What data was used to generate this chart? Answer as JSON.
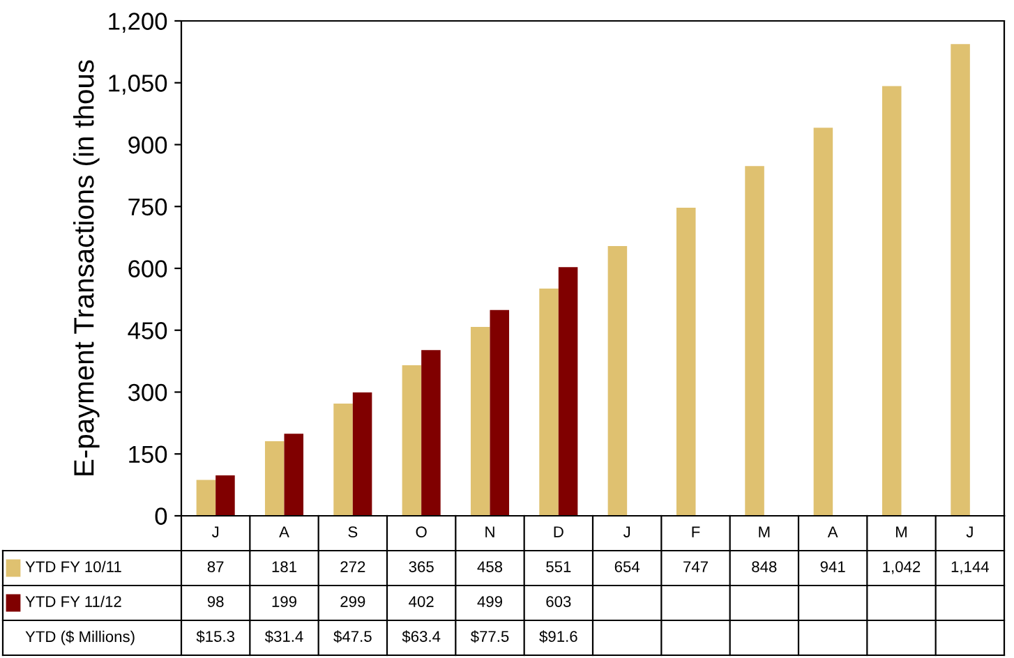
{
  "chart_data": {
    "type": "bar",
    "ylabel": "E-payment Transactions (in thous",
    "categories": [
      "J",
      "A",
      "S",
      "O",
      "N",
      "D",
      "J",
      "F",
      "M",
      "A",
      "M",
      "J"
    ],
    "series": [
      {
        "name": "YTD FY 10/11",
        "color": "#dfc170",
        "values": [
          87,
          181,
          272,
          365,
          458,
          551,
          654,
          747,
          848,
          941,
          1042,
          1144
        ],
        "value_labels": [
          "87",
          "181",
          "272",
          "365",
          "458",
          "551",
          "654",
          "747",
          "848",
          "941",
          "1,042",
          "1,144"
        ]
      },
      {
        "name": "YTD FY 11/12",
        "color": "#800000",
        "values": [
          98,
          199,
          299,
          402,
          499,
          603,
          null,
          null,
          null,
          null,
          null,
          null
        ],
        "value_labels": [
          "98",
          "199",
          "299",
          "402",
          "499",
          "603",
          null,
          null,
          null,
          null,
          null,
          null
        ]
      }
    ],
    "ylim": [
      0,
      1200
    ],
    "yticks": [
      0,
      150,
      300,
      450,
      600,
      750,
      900,
      {
        "value": 1050,
        "label": "1,050"
      },
      {
        "value": 1200,
        "label": "1,200"
      }
    ],
    "legend": "bottom left",
    "annotations": [
      "YTD ($ Millions)",
      "$15.3",
      "$31.4",
      "$47.5",
      "$63.4",
      "$77.5",
      "$91.6"
    ]
  }
}
